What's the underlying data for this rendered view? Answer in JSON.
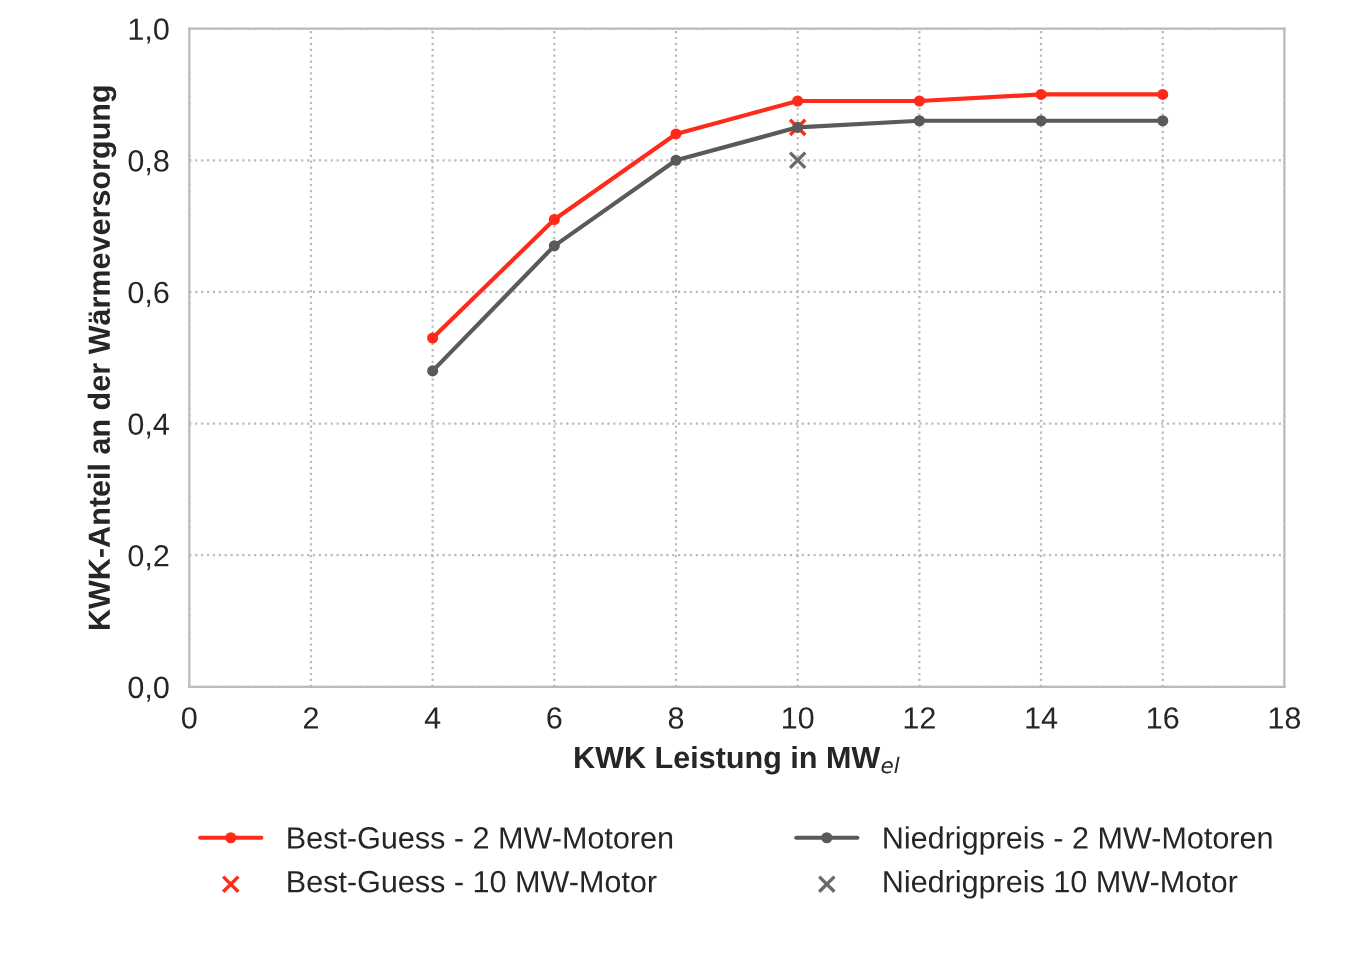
{
  "chart_data": {
    "type": "line",
    "xlabel": "KWK Leistung in MW$_{el}$",
    "ylabel": "KWK-Anteil an der Wärmeversorgung",
    "xlim": [
      0,
      18
    ],
    "xticks": [
      0,
      2,
      4,
      6,
      8,
      10,
      12,
      14,
      16,
      18
    ],
    "ylim": [
      0,
      1
    ],
    "yticks": [
      {
        "value": 0,
        "label": "0,0"
      },
      {
        "value": 0.2,
        "label": "0,2"
      },
      {
        "value": 0.4,
        "label": "0,4"
      },
      {
        "value": 0.6,
        "label": "0,6"
      },
      {
        "value": 0.8,
        "label": "0,8"
      },
      {
        "value": 1,
        "label": "1,0"
      }
    ],
    "grid": true,
    "legend": "bottom",
    "marker": "circle",
    "line_style": "solid",
    "series": [
      {
        "name": "Best-Guess - 2 MW-Motoren",
        "color": "#ff2a1a",
        "x": [
          4,
          6,
          8,
          10,
          12,
          14,
          16
        ],
        "values": [
          0.53,
          0.71,
          0.84,
          0.89,
          0.89,
          0.9,
          0.9
        ]
      },
      {
        "name": "Best-Guess - 10 MW-Motor",
        "type": "scatter",
        "marker": "cross",
        "color": "#ff2a1a",
        "x": [
          10
        ],
        "values": [
          0.85
        ]
      },
      {
        "name": "Niedrigpreis - 2 MW-Motoren",
        "color": "#5a5a5a",
        "x": [
          4,
          6,
          8,
          10,
          12,
          14,
          16
        ],
        "values": [
          0.48,
          0.67,
          0.8,
          0.85,
          0.86,
          0.86,
          0.86
        ]
      },
      {
        "name": "Niedrigpreis 10 MW-Motor",
        "type": "scatter",
        "marker": "cross",
        "color": "#6a6a6a",
        "x": [
          10
        ],
        "values": [
          0.8
        ]
      }
    ]
  }
}
